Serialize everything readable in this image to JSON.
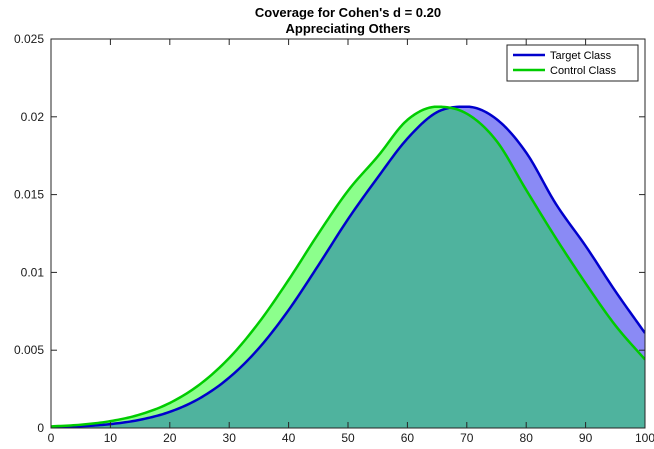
{
  "chart_data": {
    "type": "area",
    "title": "Coverage for Cohen's d = 0.20",
    "subtitle": "Appreciating Others",
    "xlabel": "",
    "ylabel": "",
    "xlim": [
      0,
      100
    ],
    "ylim": [
      0,
      0.025
    ],
    "x_ticks": [
      "0",
      "10",
      "20",
      "30",
      "40",
      "50",
      "60",
      "70",
      "80",
      "90",
      "100"
    ],
    "y_ticks": [
      "0",
      "0.005",
      "0.01",
      "0.015",
      "0.02",
      "0.025"
    ],
    "grid": false,
    "legend_position": "top-right",
    "x": [
      0,
      5,
      10,
      15,
      20,
      25,
      30,
      35,
      40,
      45,
      50,
      55,
      60,
      65,
      70,
      75,
      80,
      85,
      90,
      95,
      100
    ],
    "series": [
      {
        "name": "Target Class",
        "line_color": "#0000cc",
        "fill_color": "#8a8af5",
        "values": [
          5e-05,
          0.00011,
          0.00025,
          0.00053,
          0.00104,
          0.0019,
          0.00324,
          0.00513,
          0.00758,
          0.01045,
          0.01342,
          0.0161,
          0.0186,
          0.0203,
          0.02065,
          0.01985,
          0.0177,
          0.0144,
          0.0117,
          0.0088,
          0.0061
        ]
      },
      {
        "name": "Control Class",
        "line_color": "#00cc00",
        "fill_color": "#8cff8c",
        "values": [
          0.0001,
          0.00021,
          0.00044,
          0.00087,
          0.00161,
          0.00279,
          0.0045,
          0.00678,
          0.00952,
          0.01248,
          0.01525,
          0.01745,
          0.0198,
          0.02065,
          0.0202,
          0.01845,
          0.0153,
          0.0122,
          0.0093,
          0.0066,
          0.0044
        ]
      }
    ],
    "overlap_fill_color": "#4fb39e"
  }
}
